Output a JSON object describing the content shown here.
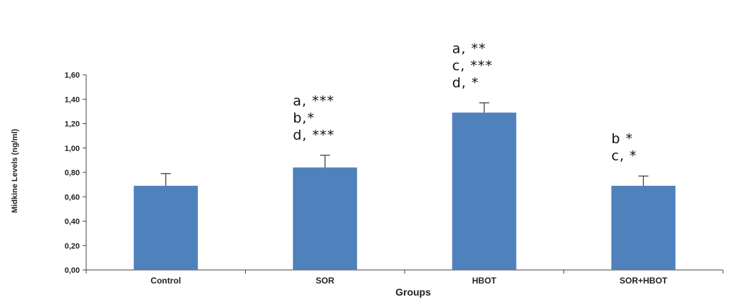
{
  "chart_data": {
    "type": "bar",
    "categories": [
      "Control",
      "SOR",
      "HBOT",
      "SOR+HBOT"
    ],
    "values": [
      0.69,
      0.84,
      1.29,
      0.69
    ],
    "errors": [
      0.1,
      0.1,
      0.08,
      0.08
    ],
    "xlabel": "Groups",
    "ylabel": "Midkine Levels (ng/ml)",
    "ylim": [
      0,
      1.6
    ],
    "yticks": [
      "0,00",
      "0,20",
      "0,40",
      "0,60",
      "0,80",
      "1,00",
      "1,20",
      "1,40",
      "1,60"
    ],
    "bar_color": "#4f81bd",
    "annotations": [
      [],
      [
        "a, ***",
        "b,*",
        "d, ***"
      ],
      [
        "a, **",
        "c, ***",
        "d, *"
      ],
      [
        "b *",
        "c, *"
      ]
    ],
    "grid": false,
    "legend": "none"
  }
}
